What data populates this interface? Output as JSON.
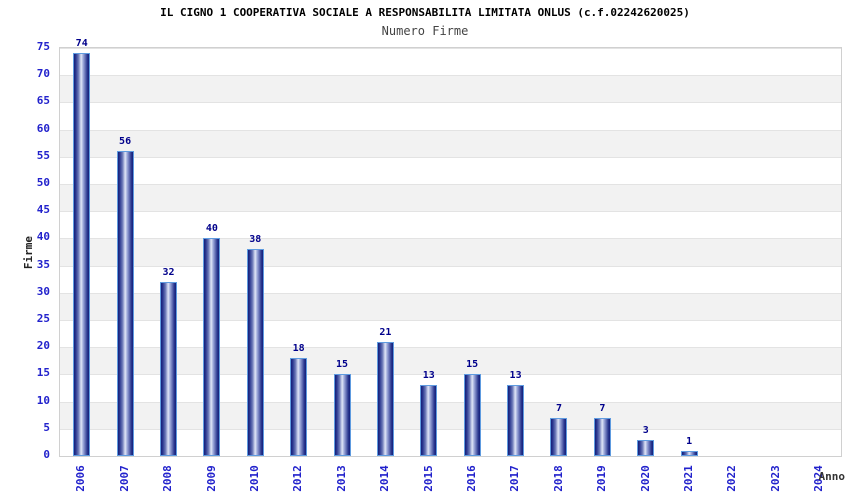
{
  "header": {
    "title": "IL CIGNO 1 COOPERATIVA SOCIALE A RESPONSABILITA LIMITATA ONLUS (c.f.02242620025)",
    "subtitle": "Numero Firme"
  },
  "chart_data": {
    "type": "bar",
    "title": "IL CIGNO 1 COOPERATIVA SOCIALE A RESPONSABILITA LIMITATA ONLUS (c.f.02242620025)",
    "subtitle": "Numero Firme",
    "xlabel": "Anno",
    "ylabel": "Firme",
    "categories": [
      "2006",
      "2007",
      "2008",
      "2009",
      "2010",
      "2012",
      "2013",
      "2014",
      "2015",
      "2016",
      "2017",
      "2018",
      "2019",
      "2020",
      "2021",
      "2022",
      "2023",
      "2024"
    ],
    "values": [
      74,
      56,
      32,
      40,
      38,
      18,
      15,
      21,
      13,
      15,
      13,
      7,
      7,
      3,
      1,
      null,
      null,
      null
    ],
    "ylim": [
      0,
      75
    ],
    "ytick_step": 5,
    "yticks": [
      0,
      5,
      10,
      15,
      20,
      25,
      30,
      35,
      40,
      45,
      50,
      55,
      60,
      65,
      70,
      75
    ],
    "grid": "alternating horizontal bands",
    "legend_position": "none",
    "colors": {
      "bar_dark": "#141e7a",
      "bar_light": "#dfe5f7",
      "bar_border": "#5e9be0",
      "tick_label": "#2222cc",
      "value_label": "#00008b",
      "band_gray": "#f2f2f2",
      "band_white": "#ffffff",
      "gridline": "#e3e3e3",
      "plot_border": "#d0d0d0",
      "subtitle_text": "#444444",
      "axis_title_text": "#222222"
    }
  }
}
